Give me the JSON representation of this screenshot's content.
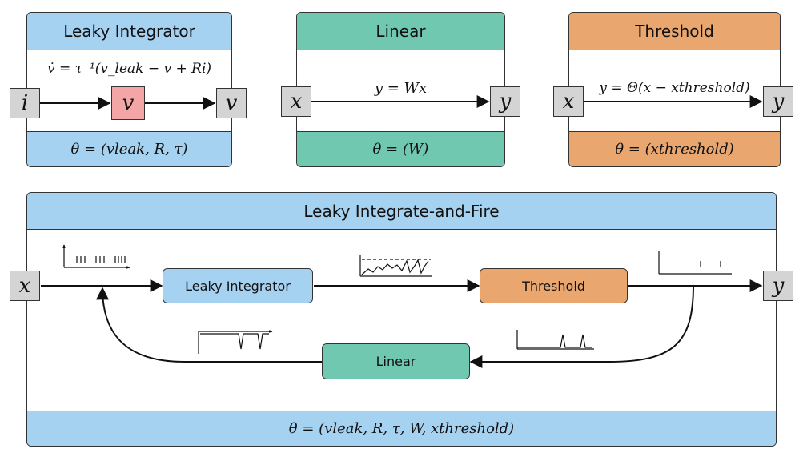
{
  "colors": {
    "blue": "#a6d2f2",
    "green": "#70c8b0",
    "orange": "#e9a76f",
    "red": "#f4a6a6",
    "gray": "#d4d4d4"
  },
  "leaky_integrator": {
    "title": "Leaky Integrator",
    "equation": "v̇ = τ⁻¹(v_leak − v + Ri)",
    "input": "i",
    "state": "v",
    "output": "v",
    "params": "θ = (vleak, R, τ)"
  },
  "linear": {
    "title": "Linear",
    "equation": "y = Wx",
    "input": "x",
    "output": "y",
    "params": "θ = (W)"
  },
  "threshold": {
    "title": "Threshold",
    "equation": "y = Θ(x − xthreshold)",
    "input": "x",
    "output": "y",
    "params": "θ = (xthreshold)"
  },
  "lif": {
    "title": "Leaky Integrate-and-Fire",
    "input": "x",
    "output": "y",
    "node_integrator": "Leaky Integrator",
    "node_threshold": "Threshold",
    "node_linear": "Linear",
    "params": "θ = (vleak, R, τ, W, xthreshold)"
  }
}
